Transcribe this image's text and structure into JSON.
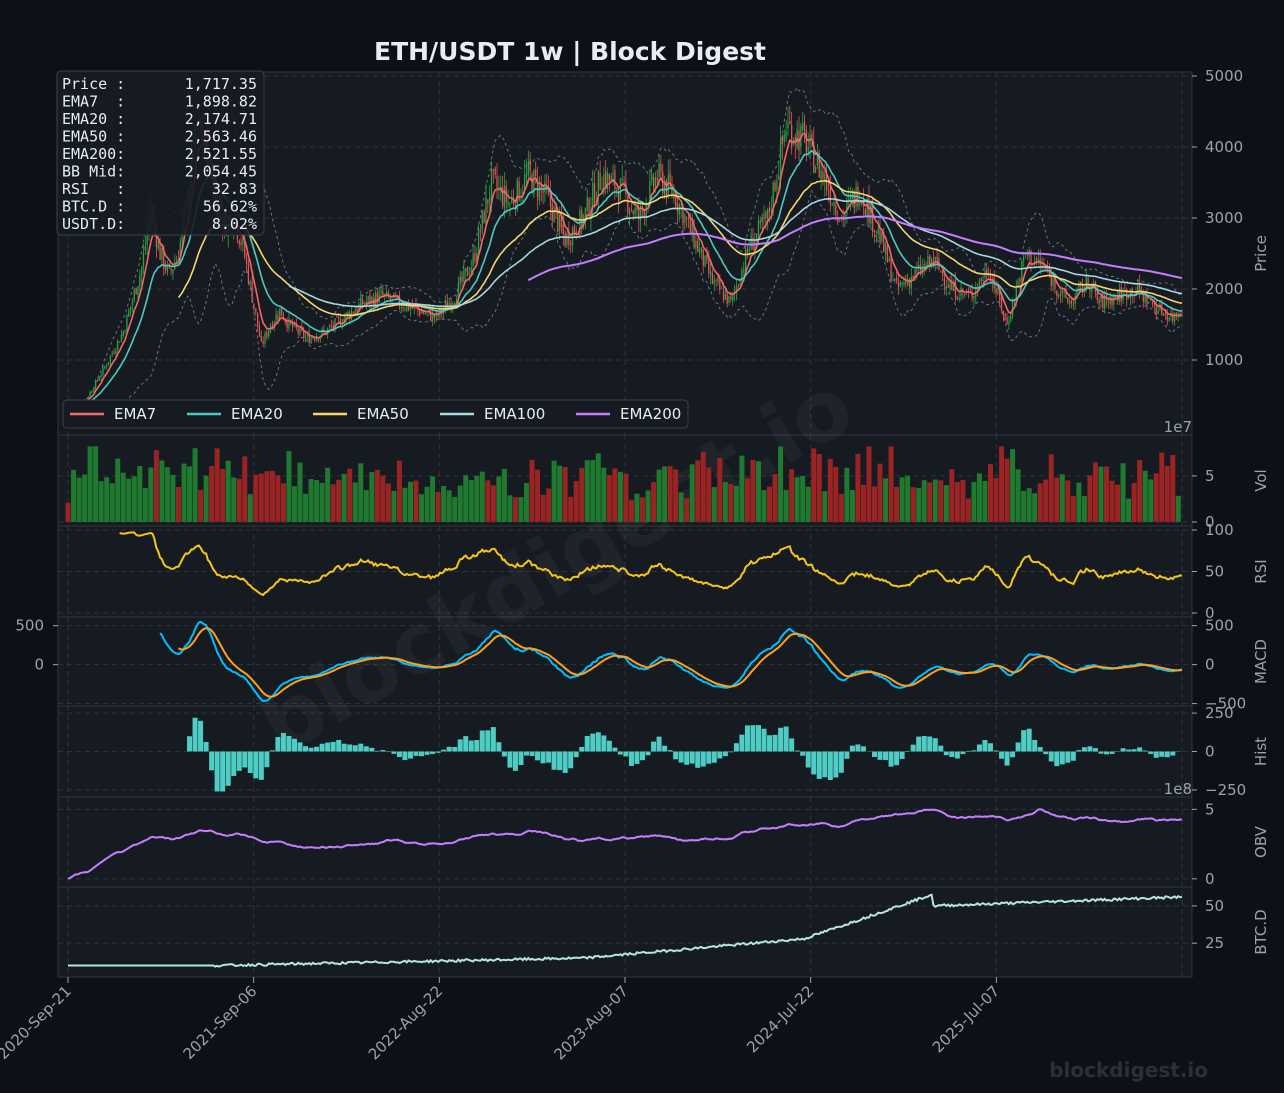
{
  "chart_data": {
    "type": "line",
    "title": "ETH/USDT  1w  |  Block Digest",
    "footer": "blockdigest.io",
    "watermark": "blockdigest.io",
    "x_labels": [
      "2020-Sep-21",
      "2021-Sep-06",
      "2022-Aug-22",
      "2023-Aug-07",
      "2024-Jul-22",
      "2025-Jul-07"
    ],
    "info_box": [
      {
        "label": "Price :",
        "value": "1,717.35"
      },
      {
        "label": "EMA7  :",
        "value": "1,898.82"
      },
      {
        "label": "EMA20 :",
        "value": "2,174.71"
      },
      {
        "label": "EMA50 :",
        "value": "2,563.46"
      },
      {
        "label": "EMA200:",
        "value": "2,521.55"
      },
      {
        "label": "BB Mid:",
        "value": "2,054.45"
      },
      {
        "label": "RSI   :",
        "value": "32.83"
      },
      {
        "label": "BTC.D :",
        "value": "56.62%"
      },
      {
        "label": "USDT.D:",
        "value": "8.02%"
      }
    ],
    "legend": [
      {
        "name": "EMA7",
        "color": "#f06868"
      },
      {
        "name": "EMA20",
        "color": "#4ec9c0"
      },
      {
        "name": "EMA50",
        "color": "#f5d76e"
      },
      {
        "name": "EMA100",
        "color": "#a8d8e0"
      },
      {
        "name": "EMA200",
        "color": "#c77dff"
      }
    ],
    "colors": {
      "up": "#26a641",
      "down": "#e05555",
      "vol_up": "#1f7a2f",
      "vol_down": "#9a2323",
      "rsi": "#f5c518",
      "macd": "#00bfff",
      "signal": "#ff9f1c",
      "hist": "#4ecdc4",
      "obv": "#c77dff",
      "btcd": "#b6e3e3",
      "band": "#6b7280"
    },
    "panels": [
      {
        "id": "price",
        "ylabel": "Price",
        "ticks": [
          "1000",
          "2000",
          "3000",
          "4000",
          "5000"
        ],
        "ylim": [
          0,
          5000
        ],
        "ticks_vals": [
          1000,
          2000,
          3000,
          4000,
          5000
        ]
      },
      {
        "id": "vol",
        "ylabel": "Vol",
        "ticks": [
          "0",
          "5"
        ],
        "ticks_vals": [
          0,
          5
        ],
        "ylim": [
          0,
          9
        ],
        "offset": "1e7"
      },
      {
        "id": "rsi",
        "ylabel": "RSI",
        "ticks": [
          "0",
          "50",
          "100"
        ],
        "ticks_vals": [
          0,
          50,
          100
        ],
        "ylim": [
          0,
          100
        ]
      },
      {
        "id": "macd",
        "ylabel": "MACD",
        "ticks": [
          "−500",
          "0",
          "500"
        ],
        "ticks_vals": [
          -500,
          0,
          500
        ],
        "left_ticks": [
          "0",
          "500"
        ],
        "left_ticks_vals": [
          0,
          500
        ],
        "ylim": [
          -480,
          560
        ]
      },
      {
        "id": "hist",
        "ylabel": "Hist",
        "ticks": [
          "−250",
          "0",
          "250"
        ],
        "ticks_vals": [
          -250,
          0,
          250
        ],
        "ylim": [
          -270,
          270
        ]
      },
      {
        "id": "obv",
        "ylabel": "OBV",
        "ticks": [
          "0",
          "5"
        ],
        "ticks_vals": [
          0,
          5
        ],
        "ylim": [
          -0.3,
          5.6
        ],
        "offset": "1e8"
      },
      {
        "id": "btcd",
        "ylabel": "BTC.D",
        "ticks": [
          "25",
          "50"
        ],
        "ticks_vals": [
          25,
          50
        ],
        "ylim": [
          5,
          60
        ]
      }
    ],
    "price_series": {
      "x": [
        0,
        10,
        20,
        30,
        40,
        45,
        50,
        55,
        60,
        65,
        70,
        75,
        80,
        85,
        90,
        95,
        100,
        105,
        110,
        115,
        120,
        130,
        140,
        150,
        160,
        170,
        180,
        190,
        200,
        210,
        220,
        230,
        240,
        250,
        260,
        270,
        280,
        290,
        300,
        310,
        320,
        330,
        340,
        350,
        360,
        370,
        380,
        390,
        400,
        410,
        420,
        430,
        440,
        450,
        460,
        470,
        480,
        490,
        500,
        510,
        520,
        530,
        540,
        545,
        550,
        555,
        560,
        570,
        580,
        590,
        600,
        605
      ],
      "close": [
        380,
        450,
        900,
        1400,
        2300,
        3100,
        2500,
        2200,
        2500,
        3300,
        4300,
        4000,
        3200,
        2900,
        3000,
        2600,
        1900,
        1200,
        1500,
        1700,
        1500,
        1300,
        1400,
        1600,
        1800,
        1900,
        1800,
        1700,
        1600,
        1900,
        2400,
        3500,
        3200,
        3600,
        3300,
        2700,
        3000,
        3600,
        3400,
        3000,
        3600,
        3300,
        2700,
        2100,
        1800,
        2600,
        3000,
        4300,
        4100,
        3600,
        3000,
        3400,
        2800,
        2000,
        2200,
        2400,
        2000,
        1900,
        2300,
        1500,
        2500,
        2300,
        1900,
        1800,
        2000,
        2100,
        1800,
        1900,
        2000,
        1750,
        1600,
        1717
      ]
    },
    "weeks": 605
  }
}
